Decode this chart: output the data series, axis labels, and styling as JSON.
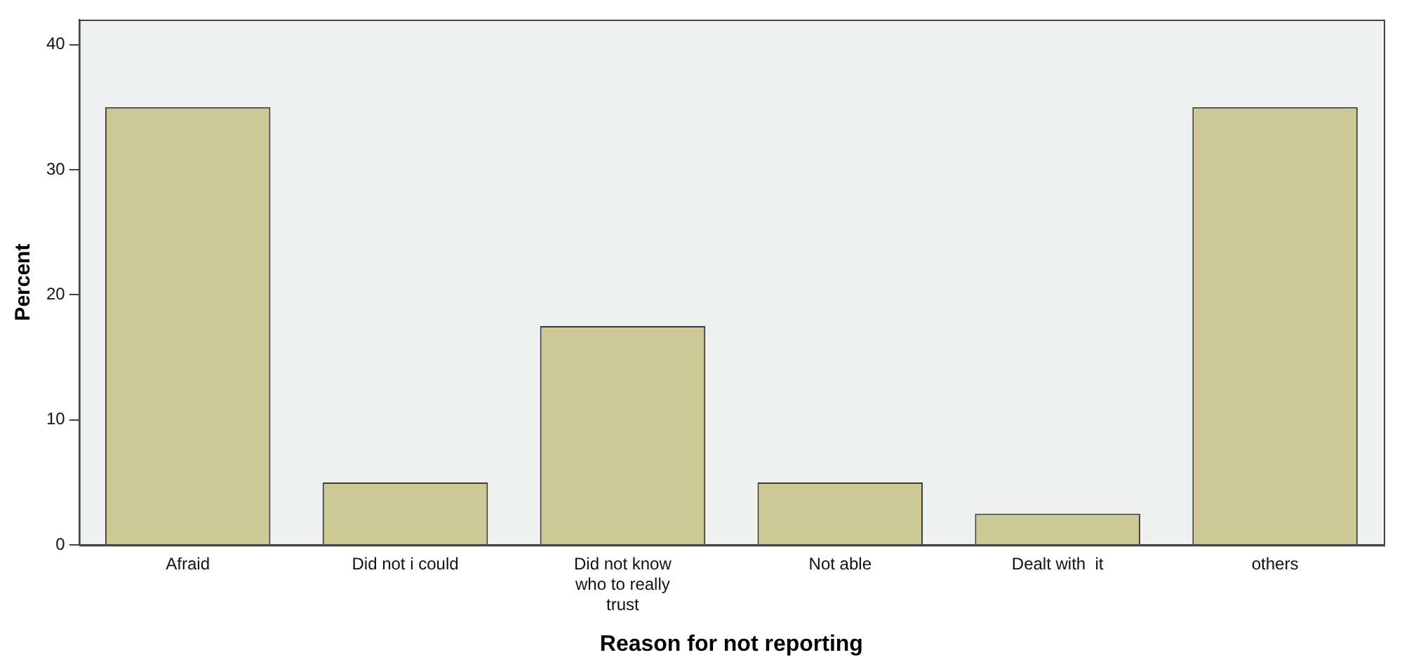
{
  "chart_data": {
    "type": "bar",
    "xlabel": "Reason for not reporting",
    "ylabel": "Percent",
    "categories": [
      "Afraid",
      "Did not i could",
      "Did not know who to really trust",
      "Not able",
      "Dealt with  it",
      "others"
    ],
    "values": [
      35,
      5,
      17.5,
      5,
      2.5,
      35
    ],
    "color": "#cdc996",
    "ylim": [
      0,
      42
    ],
    "yticks": [
      0,
      10,
      20,
      30,
      40
    ],
    "grid": false,
    "legend": false
  }
}
